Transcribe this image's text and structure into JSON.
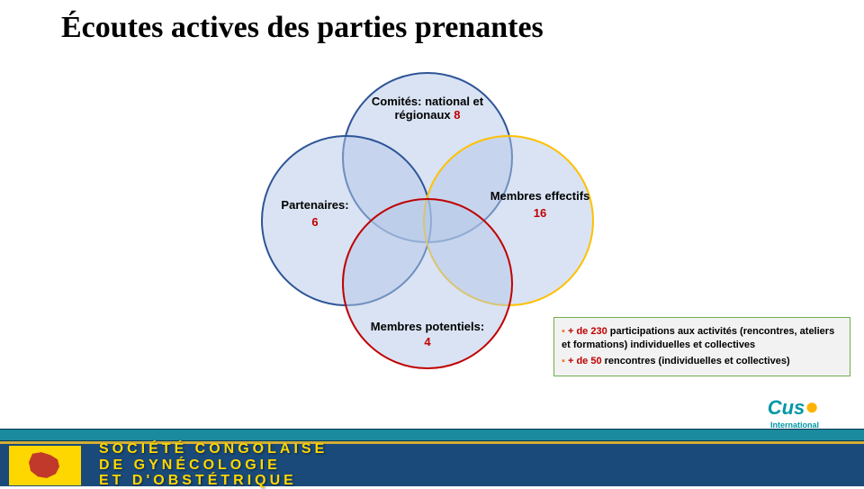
{
  "title": "Écoutes actives des parties prenantes",
  "venn": {
    "top": {
      "label": "Comités: national et régionaux",
      "value": "8",
      "fill": "rgba(180,199,231,0.5)",
      "stroke": "#2e5597"
    },
    "left": {
      "label": "Partenaires:",
      "value": "6",
      "fill": "rgba(180,199,231,0.5)",
      "stroke": "#2e5597"
    },
    "right": {
      "label": "Membres effectifs",
      "value": "16",
      "fill": "rgba(180,199,231,0.5)",
      "stroke": "#ffc000"
    },
    "bottom": {
      "label": "Membres potentiels:",
      "value": "4",
      "fill": "rgba(180,199,231,0.5)",
      "stroke": "#c00000"
    }
  },
  "stats": {
    "line1_bullet": "▪",
    "line1_highlight": "+ de 230",
    "line1_text": " participations aux activités (rencontres, ateliers et formations) individuelles et collectives",
    "line2_bullet": "▪",
    "line2_highlight": " + de 50",
    "line2_text": " rencontres (individuelles et collectives)"
  },
  "footer": {
    "cuso": "Cuso",
    "cuso_sub": "International",
    "society_line1": "SOCIÉTÉ CONGOLAISE",
    "society_line2": "DE GYNÉCOLOGIE",
    "society_line3": "ET D'OBSTÉTRIQUE"
  },
  "colors": {
    "title": "#000000",
    "number": "#c00000",
    "stats_border": "#70ad47",
    "stats_bg": "#f2f2f2",
    "teal_bar": "#1a8a9e",
    "navy_bar": "#1a4a7a",
    "gold": "#ffd700"
  }
}
